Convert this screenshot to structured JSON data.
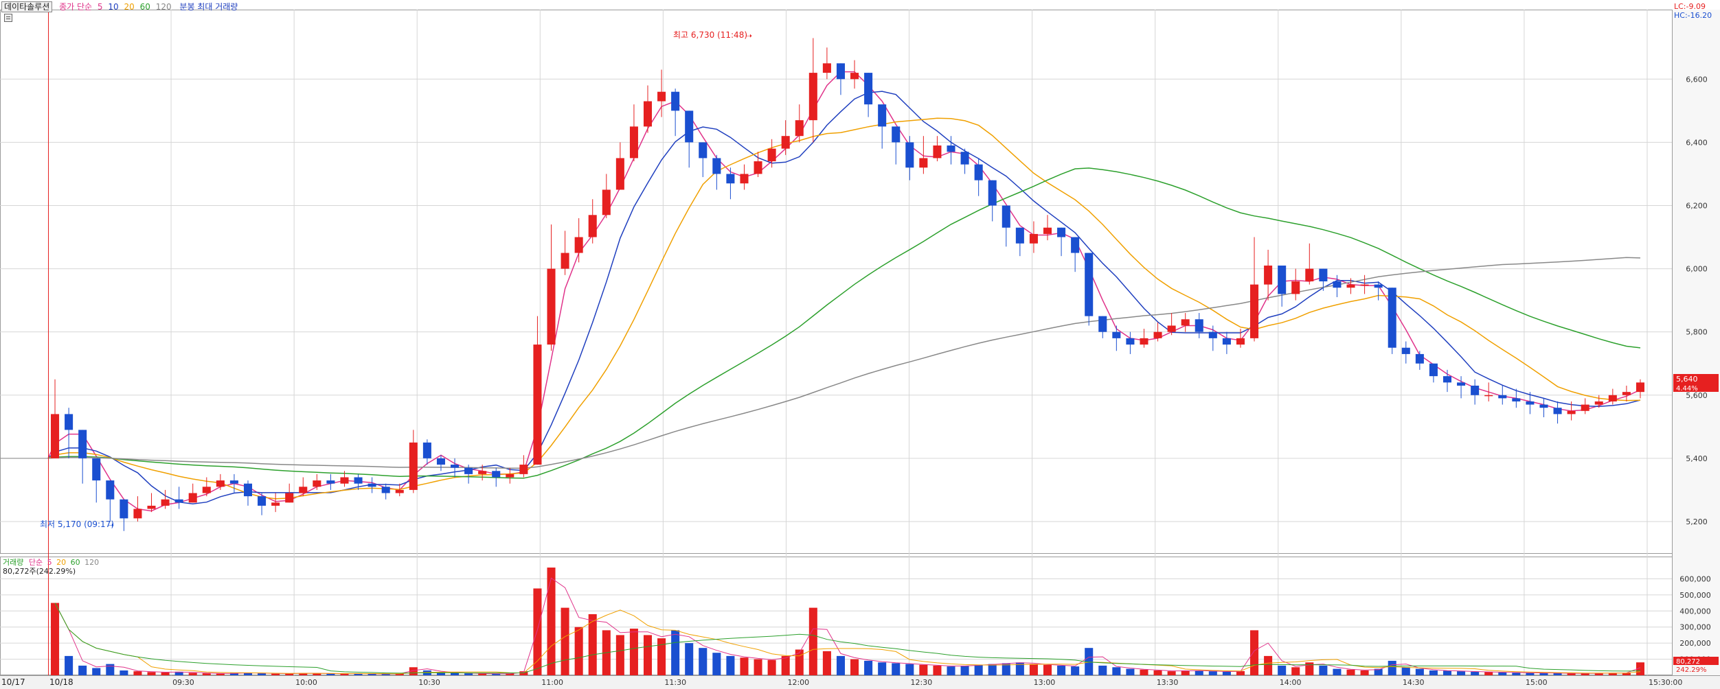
{
  "price_legend": {
    "name": "데이타솔루션",
    "ma_title": "종가 단순",
    "ma_periods": [
      "5",
      "10",
      "20",
      "60",
      "120"
    ],
    "extra": "분봉 최대 거래량",
    "colors": [
      "#e0338a",
      "#1f3fbf",
      "#f0a000",
      "#2ca02c",
      "#888888"
    ]
  },
  "volume_legend": {
    "title": "거래량",
    "ma_title": "단순",
    "ma_periods": [
      "5",
      "20",
      "60",
      "120"
    ],
    "current": "80,272주(242.29%)"
  },
  "corner": {
    "lc": "LC:-9.09",
    "hc": "HC:-16.20"
  },
  "price_tags": {
    "price": "5,640",
    "change": "4.44%"
  },
  "volume_tags": {
    "volume": "80,272",
    "ratio": "242.29%"
  },
  "annotations": {
    "high": {
      "label": "최고 6,730 (11:48)",
      "value": 6730
    },
    "low": {
      "label": "최저 5,170 (09:17)",
      "value": 5170
    }
  },
  "date_labels": {
    "prev": "10/17",
    "current": "10/18"
  },
  "colors": {
    "up": "#e62020",
    "down": "#1a4fd0",
    "grid": "#d6d6d6",
    "highlight": "#e62020"
  },
  "chart_data": [
    {
      "type": "candlestick",
      "x_axis": "time",
      "interval_minutes": 3,
      "price_range": [
        5100,
        6820
      ],
      "y_ticks": [
        5200,
        5400,
        5600,
        5800,
        6000,
        6200,
        6400,
        6600
      ],
      "y_tick_labels": [
        "5,200",
        "5,400",
        "5,600",
        "5,800",
        "6,000",
        "6,200",
        "6,400",
        "6,600"
      ],
      "x_ticks": [
        "09:30",
        "10:00",
        "10:30",
        "11:00",
        "11:30",
        "12:00",
        "12:30",
        "13:00",
        "13:30",
        "14:00",
        "14:30",
        "15:00",
        "15:30:00"
      ],
      "session_start": "09:00",
      "session_end": "15:30",
      "flat_prior_close": 5400,
      "close": [
        5540,
        5490,
        5400,
        5330,
        5270,
        5210,
        5240,
        5250,
        5270,
        5260,
        5290,
        5310,
        5330,
        5320,
        5280,
        5250,
        5260,
        5290,
        5310,
        5330,
        5320,
        5340,
        5320,
        5310,
        5290,
        5300,
        5450,
        5400,
        5380,
        5370,
        5350,
        5360,
        5340,
        5350,
        5380,
        5760,
        6000,
        6050,
        6100,
        6170,
        6250,
        6350,
        6450,
        6530,
        6560,
        6500,
        6400,
        6350,
        6300,
        6270,
        6300,
        6340,
        6380,
        6420,
        6470,
        6620,
        6650,
        6600,
        6620,
        6520,
        6450,
        6400,
        6320,
        6350,
        6390,
        6370,
        6330,
        6280,
        6200,
        6130,
        6080,
        6110,
        6130,
        6100,
        6050,
        5850,
        5800,
        5780,
        5760,
        5780,
        5800,
        5820,
        5840,
        5800,
        5780,
        5760,
        5780,
        5950,
        6010,
        5920,
        5960,
        6000,
        5960,
        5940,
        5950,
        5950,
        5940,
        5750,
        5730,
        5700,
        5660,
        5640,
        5630,
        5600,
        5600,
        5590,
        5580,
        5570,
        5560,
        5540,
        5550,
        5570,
        5580,
        5600,
        5610,
        5640
      ],
      "high": [
        5650,
        5560,
        5460,
        5400,
        5330,
        5260,
        5280,
        5290,
        5300,
        5310,
        5320,
        5340,
        5350,
        5350,
        5330,
        5290,
        5290,
        5320,
        5340,
        5350,
        5350,
        5360,
        5350,
        5340,
        5320,
        5320,
        5490,
        5460,
        5410,
        5400,
        5380,
        5380,
        5370,
        5370,
        5410,
        5850,
        6140,
        6120,
        6160,
        6220,
        6300,
        6400,
        6520,
        6580,
        6630,
        6570,
        6480,
        6400,
        6360,
        6320,
        6330,
        6370,
        6410,
        6470,
        6520,
        6730,
        6700,
        6650,
        6660,
        6600,
        6480,
        6450,
        6420,
        6420,
        6420,
        6420,
        6380,
        6350,
        6250,
        6200,
        6130,
        6150,
        6170,
        6130,
        6100,
        5920,
        5840,
        5820,
        5800,
        5810,
        5830,
        5860,
        5860,
        5860,
        5820,
        5800,
        5810,
        6100,
        6060,
        5980,
        6000,
        6080,
        6000,
        5980,
        5970,
        5980,
        5960,
        5940,
        5770,
        5740,
        5700,
        5680,
        5660,
        5650,
        5640,
        5630,
        5620,
        5610,
        5590,
        5580,
        5580,
        5590,
        5600,
        5620,
        5630,
        5650
      ],
      "low": [
        5480,
        5400,
        5320,
        5260,
        5200,
        5170,
        5200,
        5230,
        5240,
        5240,
        5260,
        5280,
        5300,
        5290,
        5250,
        5220,
        5230,
        5260,
        5280,
        5300,
        5300,
        5310,
        5300,
        5290,
        5270,
        5280,
        5290,
        5380,
        5360,
        5340,
        5320,
        5330,
        5310,
        5320,
        5340,
        5390,
        5740,
        5980,
        6020,
        6080,
        6160,
        6250,
        6340,
        6430,
        6480,
        6420,
        6320,
        6290,
        6250,
        6220,
        6250,
        6290,
        6320,
        6360,
        6400,
        6400,
        6600,
        6550,
        6570,
        6480,
        6380,
        6330,
        6280,
        6300,
        6340,
        6330,
        6300,
        6230,
        6150,
        6070,
        6040,
        6050,
        6090,
        6040,
        5990,
        5820,
        5780,
        5740,
        5730,
        5750,
        5770,
        5790,
        5800,
        5780,
        5740,
        5730,
        5750,
        5770,
        5900,
        5880,
        5900,
        5950,
        5930,
        5910,
        5920,
        5920,
        5900,
        5730,
        5700,
        5680,
        5640,
        5610,
        5590,
        5570,
        5580,
        5570,
        5560,
        5540,
        5530,
        5510,
        5520,
        5540,
        5560,
        5570,
        5580,
        5590
      ],
      "ma_series": [
        {
          "period": "5",
          "color": "#e0338a"
        },
        {
          "period": "10",
          "color": "#1f3fbf"
        },
        {
          "period": "20",
          "color": "#f0a000"
        },
        {
          "period": "60",
          "color": "#2ca02c"
        },
        {
          "period": "120",
          "color": "#888888"
        }
      ]
    },
    {
      "type": "bar",
      "name": "거래량",
      "y_range": [
        0,
        700000
      ],
      "y_ticks": [
        100000,
        200000,
        300000,
        400000,
        500000,
        600000
      ],
      "y_tick_labels": [
        "100,000",
        "200,000",
        "300,000",
        "400,000",
        "500,000",
        "600,000"
      ],
      "values": [
        450000,
        120000,
        60000,
        45000,
        70000,
        30000,
        25000,
        20000,
        18000,
        22000,
        15000,
        12000,
        10000,
        14000,
        16000,
        12000,
        10000,
        11000,
        13000,
        12000,
        9000,
        11000,
        10000,
        9000,
        8000,
        10000,
        50000,
        30000,
        20000,
        15000,
        12000,
        10000,
        9000,
        11000,
        25000,
        540000,
        670000,
        420000,
        300000,
        380000,
        280000,
        250000,
        290000,
        250000,
        230000,
        280000,
        200000,
        170000,
        140000,
        120000,
        110000,
        100000,
        95000,
        120000,
        160000,
        420000,
        150000,
        120000,
        100000,
        90000,
        80000,
        75000,
        70000,
        65000,
        60000,
        55000,
        60000,
        65000,
        70000,
        75000,
        80000,
        70000,
        65000,
        60000,
        55000,
        170000,
        60000,
        50000,
        40000,
        35000,
        30000,
        25000,
        30000,
        28000,
        25000,
        22000,
        26000,
        280000,
        120000,
        60000,
        50000,
        80000,
        60000,
        40000,
        35000,
        30000,
        40000,
        90000,
        50000,
        40000,
        30000,
        28000,
        25000,
        22000,
        20000,
        18000,
        16000,
        15000,
        14000,
        13000,
        12000,
        12000,
        13000,
        14000,
        15000,
        80272
      ]
    }
  ]
}
